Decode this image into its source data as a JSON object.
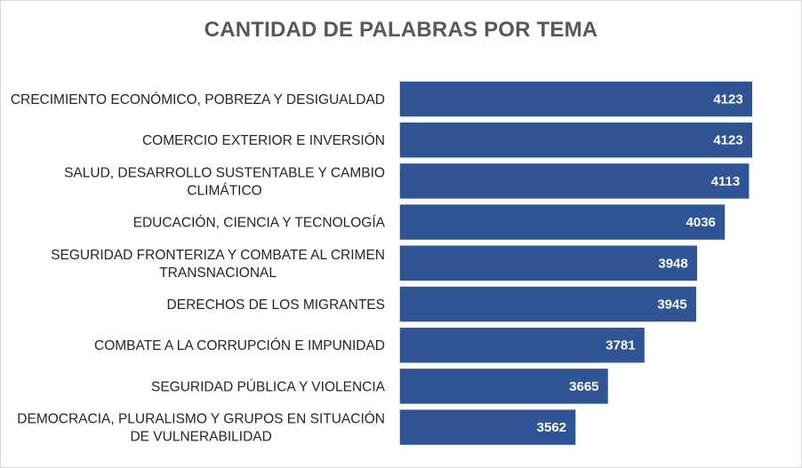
{
  "chart_data": {
    "type": "bar",
    "orientation": "horizontal",
    "title": "CANTIDAD DE PALABRAS POR TEMA",
    "categories": [
      "CRECIMIENTO ECONÓMICO, POBREZA Y DESIGUALDAD",
      "COMERCIO EXTERIOR E INVERSIÓN",
      "SALUD, DESARROLLO SUSTENTABLE Y CAMBIO CLIMÁTICO",
      "EDUCACIÓN, CIENCIA Y TECNOLOGÍA",
      "SEGURIDAD FRONTERIZA Y COMBATE AL CRIMEN TRANSNACIONAL",
      "DERECHOS DE LOS MIGRANTES",
      "COMBATE A LA CORRUPCIÓN E IMPUNIDAD",
      "SEGURIDAD PÚBLICA Y VIOLENCIA",
      "DEMOCRACIA, PLURALISMO Y GRUPOS EN SITUACIÓN DE VULNERABILIDAD"
    ],
    "category_lines": [
      [
        "CRECIMIENTO ECONÓMICO, POBREZA Y DESIGUALDAD"
      ],
      [
        "COMERCIO EXTERIOR E INVERSIÓN"
      ],
      [
        "SALUD, DESARROLLO SUSTENTABLE Y CAMBIO",
        "CLIMÁTICO"
      ],
      [
        "EDUCACIÓN, CIENCIA Y TECNOLOGÍA"
      ],
      [
        "SEGURIDAD FRONTERIZA Y COMBATE AL CRIMEN",
        "TRANSNACIONAL"
      ],
      [
        "DERECHOS DE LOS MIGRANTES"
      ],
      [
        "COMBATE A LA CORRUPCIÓN E IMPUNIDAD"
      ],
      [
        "SEGURIDAD PÚBLICA Y VIOLENCIA"
      ],
      [
        "DEMOCRACIA, PLURALISMO Y GRUPOS EN SITUACIÓN",
        "DE VULNERABILIDAD"
      ]
    ],
    "values": [
      4123,
      4123,
      4113,
      4036,
      3948,
      3945,
      3781,
      3665,
      3562
    ],
    "xlim": [
      3000,
      4200
    ],
    "grid": false,
    "legend": "none",
    "bar_color": "#2f5597"
  }
}
